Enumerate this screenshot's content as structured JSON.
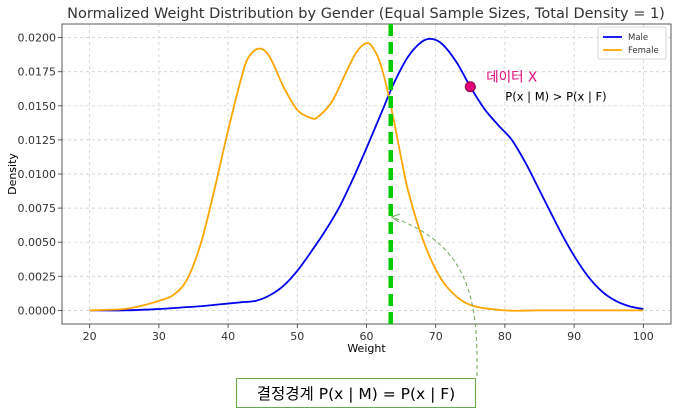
{
  "chart_data": {
    "type": "line",
    "title": "Normalized Weight Distribution by Gender (Equal Sample Sizes, Total Density = 1)",
    "xlabel": "Weight",
    "ylabel": "Density",
    "xlim": [
      16,
      104
    ],
    "ylim": [
      -0.001,
      0.021
    ],
    "xticks": [
      20,
      30,
      40,
      50,
      60,
      70,
      80,
      90,
      100
    ],
    "yticks": [
      0.0,
      0.0025,
      0.005,
      0.0075,
      0.01,
      0.0125,
      0.015,
      0.0175,
      0.02
    ],
    "ytick_labels": [
      "0.0000",
      "0.0025",
      "0.0050",
      "0.0075",
      "0.0100",
      "0.0125",
      "0.0150",
      "0.0175",
      "0.0200"
    ],
    "grid": true,
    "legend_position": "top-right",
    "series": [
      {
        "name": "Male",
        "color": "#0000ee",
        "x": [
          20,
          25,
          30,
          33,
          36,
          38,
          40,
          42,
          44,
          46,
          48,
          50,
          52,
          54,
          56,
          58,
          60,
          62,
          64,
          66,
          68,
          69.5,
          71,
          73,
          75,
          77,
          79,
          81,
          83,
          85,
          88,
          90,
          92,
          94,
          96,
          98,
          100
        ],
        "y": [
          0,
          0,
          0.0001,
          0.0002,
          0.0003,
          0.0004,
          0.0005,
          0.0006,
          0.0007,
          0.0011,
          0.0018,
          0.0029,
          0.0043,
          0.0058,
          0.0075,
          0.0096,
          0.0119,
          0.0143,
          0.0167,
          0.0186,
          0.0197,
          0.0199,
          0.0195,
          0.0182,
          0.0164,
          0.0148,
          0.0136,
          0.0125,
          0.0108,
          0.0088,
          0.0058,
          0.004,
          0.0025,
          0.0014,
          0.0007,
          0.0003,
          0.0001
        ]
      },
      {
        "name": "Female",
        "color": "#ffa500",
        "x": [
          20,
          25,
          28,
          30,
          32,
          34,
          36,
          38,
          40,
          42,
          43,
          44.5,
          46,
          48,
          50,
          52,
          53,
          55,
          57,
          58.5,
          60,
          61,
          62,
          63,
          64,
          65,
          66,
          68,
          70,
          72,
          75,
          80,
          85,
          90,
          100
        ],
        "y": [
          0,
          0.0001,
          0.0004,
          0.0007,
          0.0011,
          0.0022,
          0.0048,
          0.0088,
          0.0132,
          0.0172,
          0.0186,
          0.0192,
          0.0186,
          0.0164,
          0.0147,
          0.0141,
          0.0142,
          0.0153,
          0.0174,
          0.0189,
          0.0196,
          0.0192,
          0.0181,
          0.0162,
          0.0138,
          0.0112,
          0.0088,
          0.0054,
          0.003,
          0.0015,
          0.0004,
          0,
          0,
          0,
          0
        ]
      }
    ],
    "decision_boundary_x": 63.5,
    "boundary_color": "#00cc00",
    "data_point": {
      "x": 75,
      "y": 0.0164,
      "color": "#e0007a"
    },
    "annotations": {
      "point_label": "데이터 X",
      "point_label_color": "#e0007a",
      "inequality": "P(x | M) > P(x | F)",
      "boundary_label": "결정경계 P(x | M) = P(x | F)",
      "arrow_color": "#6aa84f"
    }
  }
}
